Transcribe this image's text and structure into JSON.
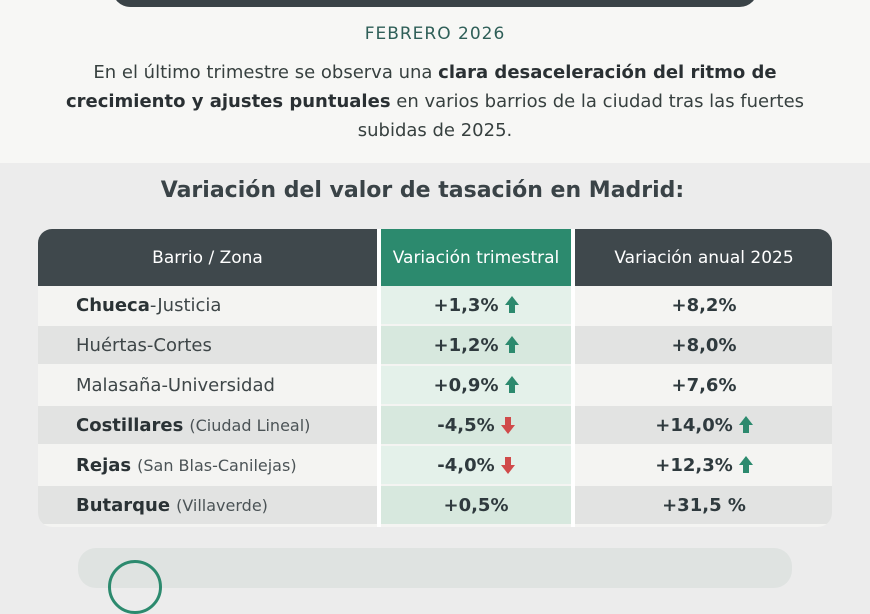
{
  "header": {
    "date": "FEBRERO 2026"
  },
  "intro": {
    "part1": "En el  último trimestre se observa una ",
    "bold": "clara desaceleración del ritmo de crecimiento y ajustes puntuales",
    "part2": " en varios barrios de la ciudad tras las fuertes subidas de 2025."
  },
  "section_title": "Variación del valor de tasación en Madrid:",
  "table": {
    "headers": {
      "zona": "Barrio / Zona",
      "trimestral": "Variación trimestral",
      "anual": "Variación anual 2025"
    },
    "rows": [
      {
        "bold": "Chueca",
        "rest": "-Justicia",
        "sub": "",
        "quarterly": "+1,3%",
        "q_arrow": "arrow-up-icon",
        "annual": "+8,2%",
        "a_arrow": ""
      },
      {
        "bold": "",
        "rest": "Huértas-Cortes",
        "sub": "",
        "quarterly": "+1,2%",
        "q_arrow": "arrow-up-icon",
        "annual": "+8,0%",
        "a_arrow": ""
      },
      {
        "bold": "",
        "rest": "Malasaña-Universidad",
        "sub": "",
        "quarterly": "+0,9%",
        "q_arrow": "arrow-up-icon",
        "annual": "+7,6%",
        "a_arrow": ""
      },
      {
        "bold": "Costillares",
        "rest": "",
        "sub": "(Ciudad Lineal)",
        "quarterly": "-4,5%",
        "q_arrow": "arrow-down-icon",
        "annual": "+14,0%",
        "a_arrow": "arrow-up-icon"
      },
      {
        "bold": "Rejas",
        "rest": "",
        "sub": "(San Blas-Canilejas)",
        "quarterly": "-4,0%",
        "q_arrow": "arrow-down-icon",
        "annual": "+12,3%",
        "a_arrow": "arrow-up-icon"
      },
      {
        "bold": "Butarque",
        "rest": "",
        "sub": "(Villaverde)",
        "quarterly": "+0,5%",
        "q_arrow": "",
        "annual": "+31,5 %",
        "a_arrow": ""
      }
    ]
  },
  "colors": {
    "accent_green": "#2c8a6e",
    "header_dark": "#3f484c",
    "down_red": "#d04a4a"
  }
}
